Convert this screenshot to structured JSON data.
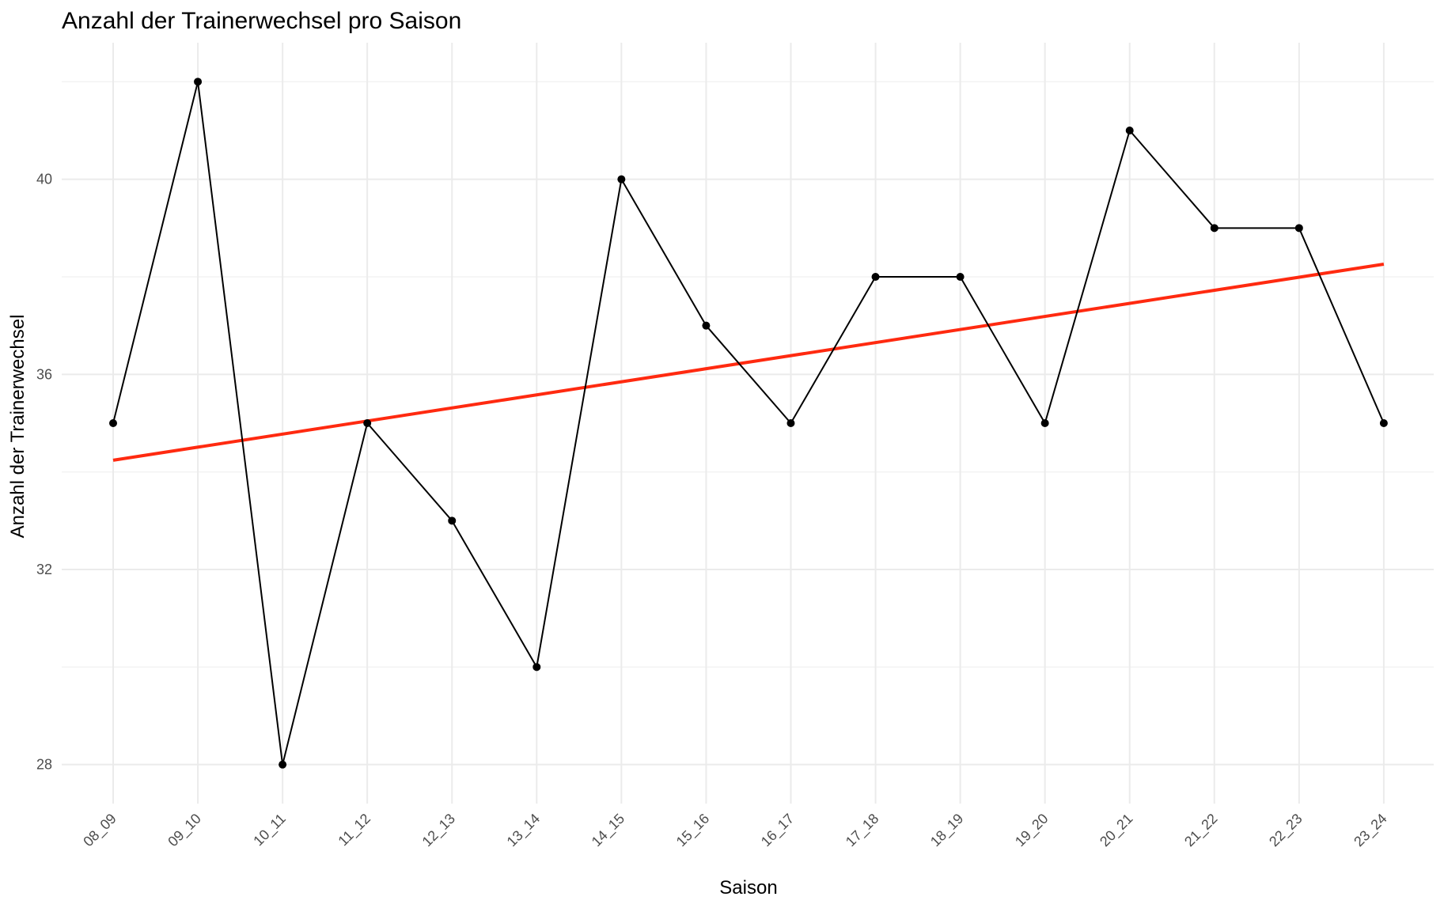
{
  "chart_data": {
    "type": "line",
    "title": "Anzahl der Trainerwechsel pro Saison",
    "xlabel": "Saison",
    "ylabel": "Anzahl der Trainerwechsel",
    "categories": [
      "08_09",
      "09_10",
      "10_11",
      "11_12",
      "12_13",
      "13_14",
      "14_15",
      "15_16",
      "16_17",
      "17_18",
      "18_19",
      "19_20",
      "20_21",
      "21_22",
      "22_23",
      "23_24"
    ],
    "series": [
      {
        "values": [
          35,
          42,
          28,
          35,
          33,
          30,
          40,
          37,
          35,
          38,
          38,
          35,
          41,
          39,
          39,
          35
        ],
        "color": "#000000"
      }
    ],
    "trendline": {
      "method": "linear",
      "start": 34.24,
      "end": 38.26,
      "color": "#ff2a10"
    },
    "yticks": [
      28,
      32,
      36,
      40
    ],
    "ylim": [
      27.2,
      42.8
    ],
    "grid": true,
    "legend": "none"
  }
}
